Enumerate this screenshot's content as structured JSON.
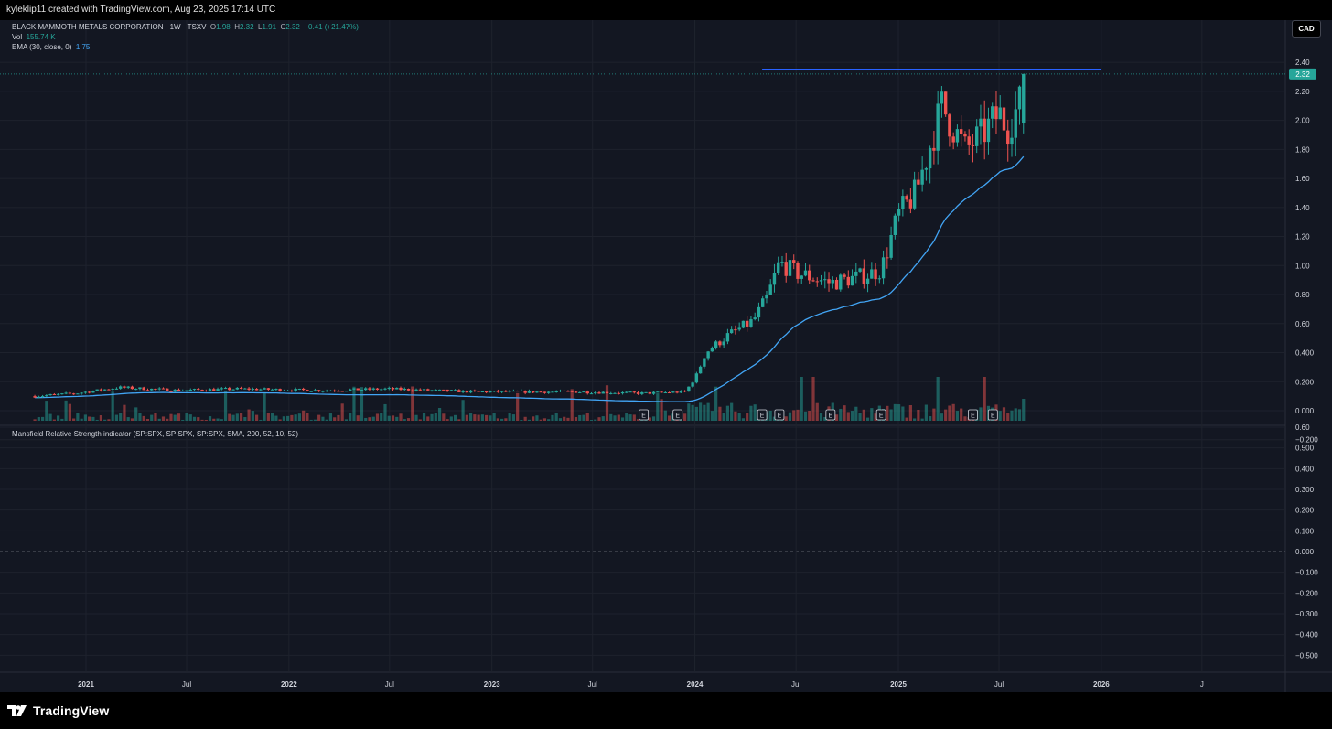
{
  "header": {
    "credit": "kyleklip11 created with TradingView.com, Aug 23, 2025 17:14 UTC"
  },
  "legend": {
    "symbol": "BLACK MAMMOTH METALS CORPORATION · 1W · TSXV",
    "o_label": "O",
    "o_value": "1.98",
    "h_label": "H",
    "h_value": "2.32",
    "l_label": "L",
    "l_value": "1.91",
    "c_label": "C",
    "c_value": "2.32",
    "change": "+0.41 (+21.47%)",
    "vol_label": "Vol",
    "vol_value": "155.74 K",
    "ema_label": "EMA (30, close, 0)",
    "ema_value": "1.75",
    "mansfield_label": "Mansfield Relative Strength indicator (SP:SPX, SP:SPX, SP:SPX, SMA, 200, 52, 10, 52)"
  },
  "currency": "CAD",
  "price_badge": "2.32",
  "brand": "TradingView",
  "colors": {
    "up": "#26a69a",
    "down": "#ef5350",
    "ema": "#42a5f5",
    "hline": "#2962ff",
    "bg": "#131722",
    "grid": "#1e222d"
  },
  "chart_data": [
    {
      "type": "candlestick",
      "interval": "1W",
      "currency": "CAD",
      "ylim": [
        -0.2,
        2.4
      ],
      "y_ticks": [
        "2.40",
        "2.20",
        "2.00",
        "1.80",
        "1.60",
        "1.40",
        "1.20",
        "1.00",
        "0.80",
        "0.60",
        "0.400",
        "0.200",
        "0.000",
        "−0.200"
      ],
      "x_ticks": [
        "2021",
        "Jul",
        "2022",
        "Jul",
        "2023",
        "Jul",
        "2024",
        "Jul",
        "2025",
        "Jul",
        "2026",
        "J"
      ],
      "price_anchors": [
        [
          "2020-10-01",
          0.1
        ],
        [
          "2020-12-15",
          0.12
        ],
        [
          "2021-03-01",
          0.16
        ],
        [
          "2021-06-15",
          0.14
        ],
        [
          "2021-10-01",
          0.15
        ],
        [
          "2022-03-01",
          0.14
        ],
        [
          "2022-07-01",
          0.15
        ],
        [
          "2022-12-01",
          0.13
        ],
        [
          "2023-06-01",
          0.13
        ],
        [
          "2023-10-01",
          0.12
        ],
        [
          "2023-12-15",
          0.13
        ],
        [
          "2024-01-05",
          0.25
        ],
        [
          "2024-01-20",
          0.4
        ],
        [
          "2024-03-01",
          0.52
        ],
        [
          "2024-04-15",
          0.62
        ],
        [
          "2024-05-10",
          0.78
        ],
        [
          "2024-06-01",
          1.02
        ],
        [
          "2024-07-01",
          0.95
        ],
        [
          "2024-09-01",
          0.88
        ],
        [
          "2024-11-01",
          0.93
        ],
        [
          "2024-12-01",
          0.97
        ],
        [
          "2025-01-01",
          1.35
        ],
        [
          "2025-02-01",
          1.5
        ],
        [
          "2025-03-01",
          1.85
        ],
        [
          "2025-03-20",
          2.1
        ],
        [
          "2025-05-01",
          1.8
        ],
        [
          "2025-06-01",
          1.9
        ],
        [
          "2025-07-01",
          2.05
        ],
        [
          "2025-07-15",
          1.95
        ],
        [
          "2025-08-08",
          2.12
        ],
        [
          "2025-08-18",
          2.32
        ]
      ],
      "last_candle": {
        "open": 1.98,
        "high": 2.32,
        "low": 1.91,
        "close": 2.32
      },
      "ema": {
        "period": 30,
        "last": 1.75
      },
      "resistance_line": 2.35,
      "earnings_markers": [
        "2023-10-01",
        "2023-12-01",
        "2024-05-01",
        "2024-06-01",
        "2024-09-01",
        "2024-12-01",
        "2025-05-15",
        "2025-06-20"
      ],
      "earnings_label": "E"
    },
    {
      "type": "line",
      "title": "Mansfield Relative Strength indicator (SP:SPX, SP:SPX, SP:SPX, SMA, 200, 52, 10, 52)",
      "ylim": [
        -0.6,
        0.6
      ],
      "y_ticks": [
        "0.60",
        "0.500",
        "0.400",
        "0.300",
        "0.200",
        "0.100",
        "0.000",
        "−0.100",
        "−0.200",
        "−0.300",
        "−0.400",
        "−0.500"
      ],
      "zero_line": 0.0
    }
  ]
}
